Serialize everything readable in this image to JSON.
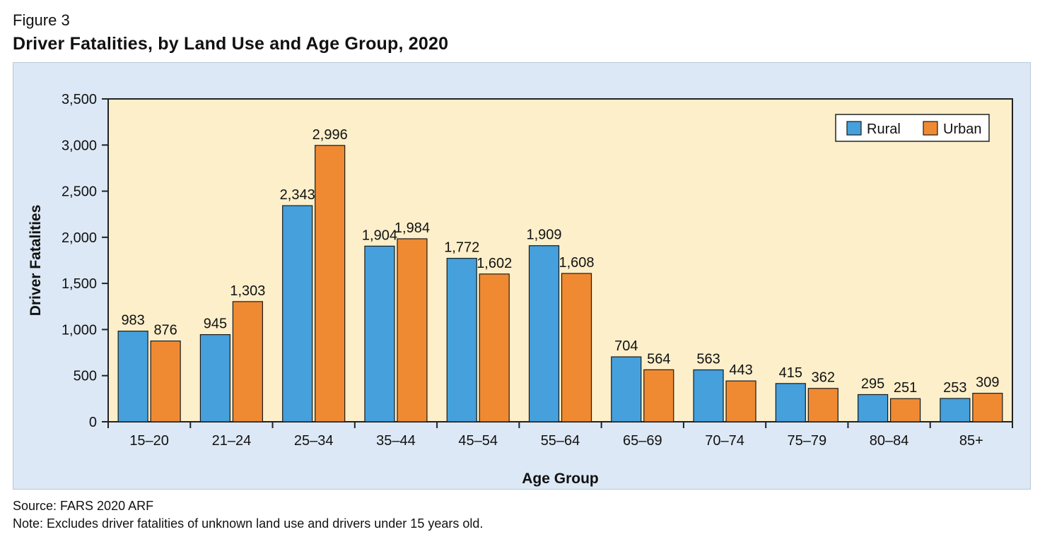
{
  "figure_label": "Figure 3",
  "title": "Driver Fatalities, by Land Use and Age Group, 2020",
  "source": "Source: FARS 2020 ARF",
  "note": "Note: Excludes driver fatalities of unknown land use and drivers under 15 years old.",
  "colors": {
    "rural": "#45a0dc",
    "urban": "#ef8a33",
    "plot_bg": "#fcefca",
    "panel_bg": "#dce8f5"
  },
  "chart_data": {
    "type": "bar",
    "title": "Driver Fatalities, by Land Use and Age Group, 2020",
    "xlabel": "Age Group",
    "ylabel": "Driver Fatalities",
    "ylim": [
      0,
      3500
    ],
    "yticks": [
      0,
      500,
      1000,
      1500,
      2000,
      2500,
      3000,
      3500
    ],
    "ytick_labels": [
      "0",
      "500",
      "1,000",
      "1,500",
      "2,000",
      "2,500",
      "3,000",
      "3,500"
    ],
    "grid": false,
    "legend_position": "top-right",
    "categories": [
      "15–20",
      "21–24",
      "25–34",
      "35–44",
      "45–54",
      "55–64",
      "65–69",
      "70–74",
      "75–79",
      "80–84",
      "85+"
    ],
    "series": [
      {
        "name": "Rural",
        "values": [
          983,
          945,
          2343,
          1904,
          1772,
          1909,
          704,
          563,
          415,
          295,
          253
        ],
        "labels": [
          "983",
          "945",
          "2,343",
          "1,904",
          "1,772",
          "1,909",
          "704",
          "563",
          "415",
          "295",
          "253"
        ]
      },
      {
        "name": "Urban",
        "values": [
          876,
          1303,
          2996,
          1984,
          1602,
          1608,
          564,
          443,
          362,
          251,
          309
        ],
        "labels": [
          "876",
          "1,303",
          "2,996",
          "1,984",
          "1,602",
          "1,608",
          "564",
          "443",
          "362",
          "251",
          "309"
        ]
      }
    ]
  }
}
